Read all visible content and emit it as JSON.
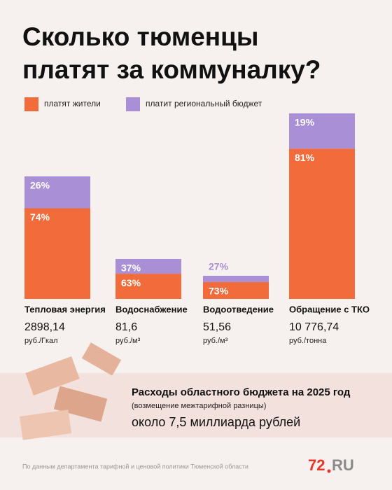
{
  "chart_data": {
    "type": "stacked-bar",
    "title_lines": [
      "Сколько тюменцы",
      "платят за коммуналку?"
    ],
    "categories": [
      "Тепловая энергия",
      "Водоснабжение",
      "Водоотведение",
      "Обращение с ТКО"
    ],
    "prices": [
      "2898,14",
      "81,6",
      "51,56",
      "10 776,74"
    ],
    "units": [
      "руб./Гкал",
      "руб./м³",
      "руб./м³",
      "руб./тонна"
    ],
    "series": [
      {
        "name": "платят жители",
        "color": "#f26b3a",
        "values": [
          74,
          63,
          73,
          81
        ],
        "value_labels": [
          "74%",
          "63%",
          "73%",
          "81%"
        ]
      },
      {
        "name": "платит региональный бюджет",
        "color": "#a98fd6",
        "values": [
          26,
          37,
          27,
          19
        ],
        "value_labels": [
          "26%",
          "37%",
          "27%",
          "19%"
        ]
      }
    ]
  },
  "budget_box": {
    "title": "Расходы областного бюджета на 2025 год",
    "subtitle": "(возмещение межтарифной разницы)",
    "amount": "около 7,5 миллиарда рублей"
  },
  "footer": {
    "source": "По данным департамента тарифной и ценовой политики Тюменской области",
    "logo_number": "72",
    "logo_text": "RU"
  }
}
